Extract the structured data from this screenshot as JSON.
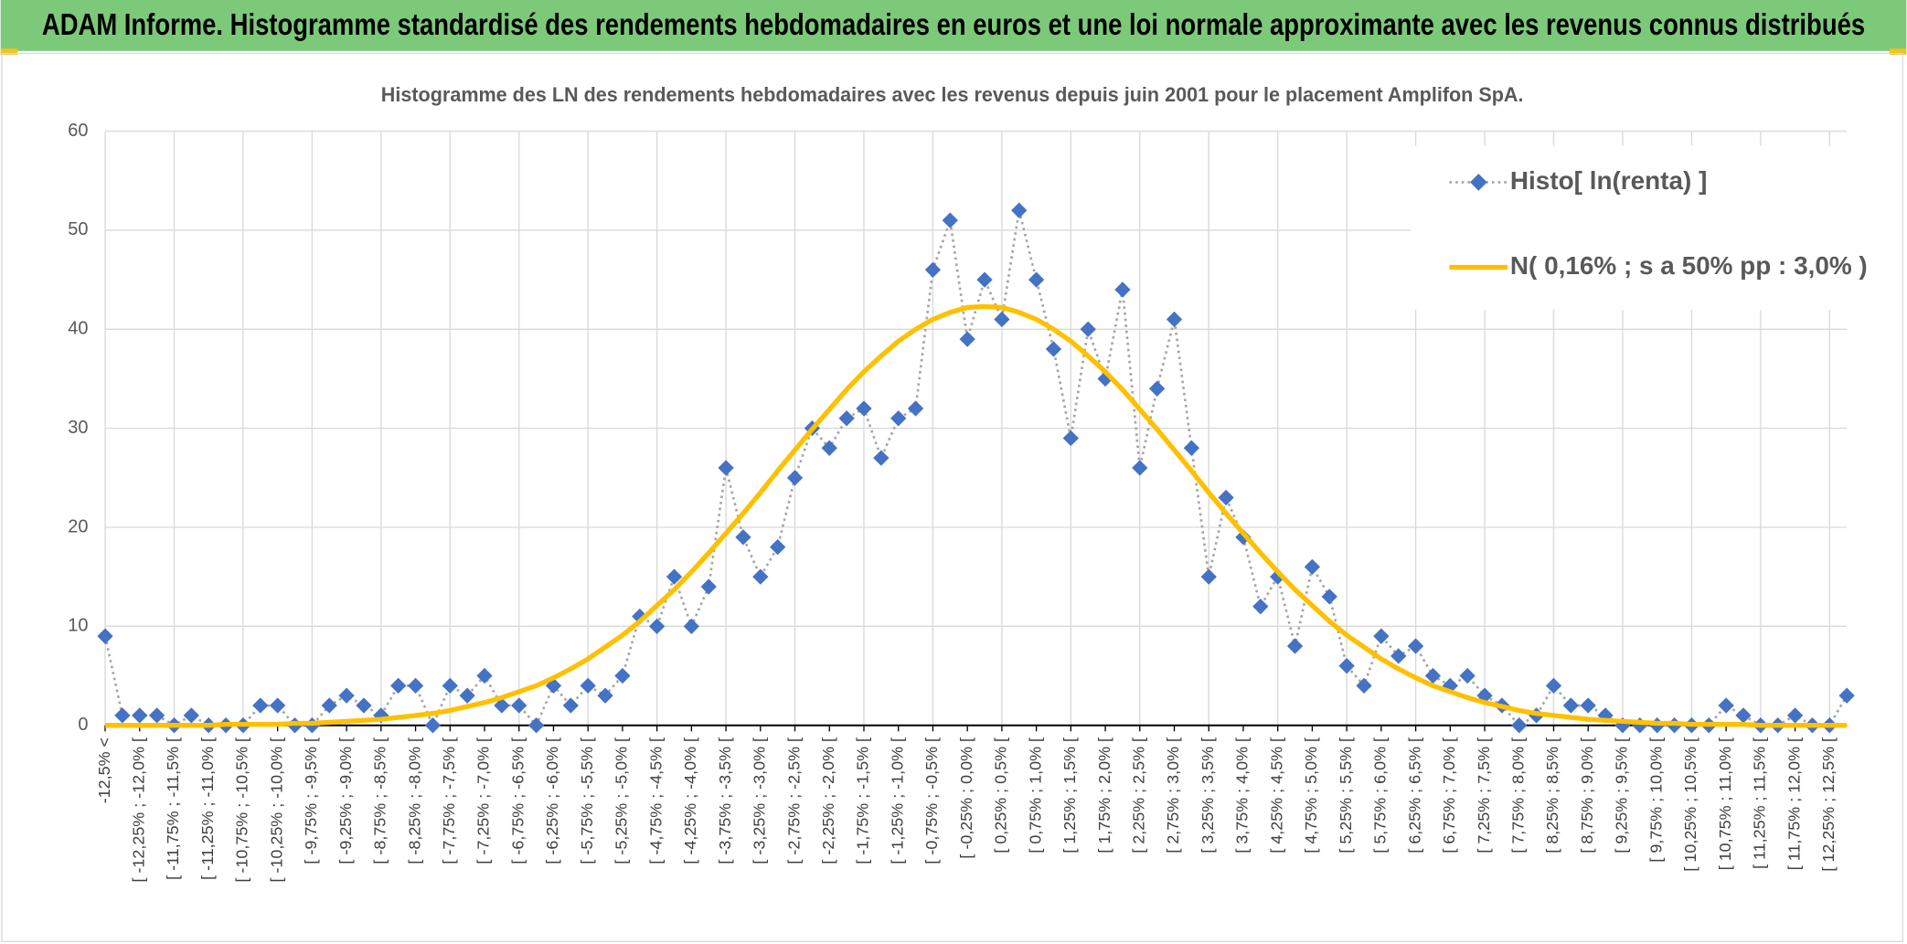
{
  "header": {
    "title": "ADAM Informe. Histogramme standardisé des rendements hebdomadaires en euros et une loi normale approximante avec les revenus connus distribués"
  },
  "chart_data": {
    "type": "line",
    "title": "Histogramme des LN des rendements hebdomadaires avec les revenus depuis juin 2001 pour le placement Amplifon SpA.",
    "categories": [
      "-12,5% <",
      null,
      "[ -12,25% ; -12,0% [",
      null,
      "[ -11,75% ; -11,5% [",
      null,
      "[ -11,25% ; -11,0% [",
      null,
      "[ -10,75% ; -10,5% [",
      null,
      "[ -10,25% ; -10,0% [",
      null,
      "[ -9,75% ; -9,5% [",
      null,
      "[ -9,25% ; -9,0% [",
      null,
      "[ -8,75% ; -8,5% [",
      null,
      "[ -8,25% ; -8,0% [",
      null,
      "[ -7,75% ; -7,5% [",
      null,
      "[ -7,25% ; -7,0% [",
      null,
      "[ -6,75% ; -6,5% [",
      null,
      "[ -6,25% ; -6,0% [",
      null,
      "[ -5,75% ; -5,5% [",
      null,
      "[ -5,25% ; -5,0% [",
      null,
      "[ -4,75% ; -4,5% [",
      null,
      "[ -4,25% ; -4,0% [",
      null,
      "[ -3,75% ; -3,5% [",
      null,
      "[ -3,25% ; -3,0% [",
      null,
      "[ -2,75% ; -2,5% [",
      null,
      "[ -2,25% ; -2,0% [",
      null,
      "[ -1,75% ; -1,5% [",
      null,
      "[ -1,25% ; -1,0% [",
      null,
      "[ -0,75% ; -0,5% [",
      null,
      "[ -0,25% ; 0,0% [",
      null,
      "[ 0,25% ; 0,5% [",
      null,
      "[ 0,75% ; 1,0% [",
      null,
      "[ 1,25% ; 1,5% [",
      null,
      "[ 1,75% ; 2,0% [",
      null,
      "[ 2,25% ; 2,5% [",
      null,
      "[ 2,75% ; 3,0% [",
      null,
      "[ 3,25% ; 3,5% [",
      null,
      "[ 3,75% ; 4,0% [",
      null,
      "[ 4,25% ; 4,5% [",
      null,
      "[ 4,75% ; 5,0% [",
      null,
      "[ 5,25% ; 5,5% [",
      null,
      "[ 5,75% ; 6,0% [",
      null,
      "[ 6,25% ; 6,5% [",
      null,
      "[ 6,75% ; 7,0% [",
      null,
      "[ 7,25% ; 7,5% [",
      null,
      "[ 7,75% ; 8,0% [",
      null,
      "[ 8,25% ; 8,5% [",
      null,
      "[ 8,75% ; 9,0% [",
      null,
      "[ 9,25% ; 9,5% [",
      null,
      "[ 9,75% ; 10,0% [",
      null,
      "[ 10,25% ; 10,5% [",
      null,
      "[ 10,75% ; 11,0% [",
      null,
      "[ 11,25% ; 11,5% [",
      null,
      "[ 11,75% ; 12,0% [",
      null,
      "[ 12,25% ; 12,5% [",
      null
    ],
    "series": [
      {
        "name": "Histo[ ln(renta) ]",
        "color": "#4472c4",
        "values": [
          9,
          1,
          1,
          1,
          0,
          1,
          0,
          0,
          0,
          2,
          2,
          0,
          0,
          2,
          3,
          2,
          1,
          4,
          4,
          0,
          4,
          3,
          5,
          2,
          2,
          0,
          4,
          2,
          4,
          3,
          5,
          11,
          10,
          15,
          10,
          14,
          26,
          19,
          15,
          18,
          25,
          30,
          28,
          31,
          32,
          27,
          31,
          32,
          46,
          51,
          39,
          45,
          41,
          52,
          45,
          38,
          29,
          40,
          35,
          44,
          26,
          34,
          41,
          28,
          15,
          23,
          19,
          12,
          15,
          8,
          16,
          13,
          6,
          4,
          9,
          7,
          8,
          5,
          4,
          5,
          3,
          2,
          0,
          1,
          4,
          2,
          2,
          1,
          0,
          0,
          0,
          0,
          0,
          0,
          2,
          1,
          0,
          0,
          1,
          0,
          0,
          3
        ]
      },
      {
        "name": "N( 0,16% ; s a 50% pp : 3,0% )",
        "color": "#ffc000",
        "values": [
          0,
          0,
          0,
          0,
          0,
          0,
          0,
          0.1,
          0.1,
          0.1,
          0.1,
          0.2,
          0.2,
          0.3,
          0.4,
          0.5,
          0.6,
          0.8,
          1.0,
          1.2,
          1.5,
          1.9,
          2.3,
          2.8,
          3.4,
          4.0,
          4.8,
          5.7,
          6.7,
          7.9,
          9.1,
          10.5,
          12.1,
          13.7,
          15.5,
          17.4,
          19.4,
          21.4,
          23.5,
          25.7,
          27.8,
          29.9,
          31.9,
          33.9,
          35.7,
          37.3,
          38.8,
          40.0,
          41.0,
          41.7,
          42.2,
          42.3,
          42.2,
          41.7,
          41.0,
          40.0,
          38.8,
          37.3,
          35.7,
          33.9,
          31.9,
          29.9,
          27.8,
          25.7,
          23.5,
          21.4,
          19.4,
          17.4,
          15.5,
          13.7,
          12.1,
          10.5,
          9.1,
          7.9,
          6.7,
          5.7,
          4.8,
          4.0,
          3.4,
          2.8,
          2.3,
          1.9,
          1.5,
          1.2,
          1.0,
          0.8,
          0.6,
          0.5,
          0.4,
          0.3,
          0.2,
          0.2,
          0.1,
          0.1,
          0.1,
          0.1,
          0,
          0,
          0,
          0,
          0,
          0
        ]
      }
    ],
    "ylim": [
      0,
      60
    ],
    "yticks": [
      0,
      10,
      20,
      30,
      40,
      50,
      60
    ],
    "grid": true,
    "legend": "upper right"
  }
}
